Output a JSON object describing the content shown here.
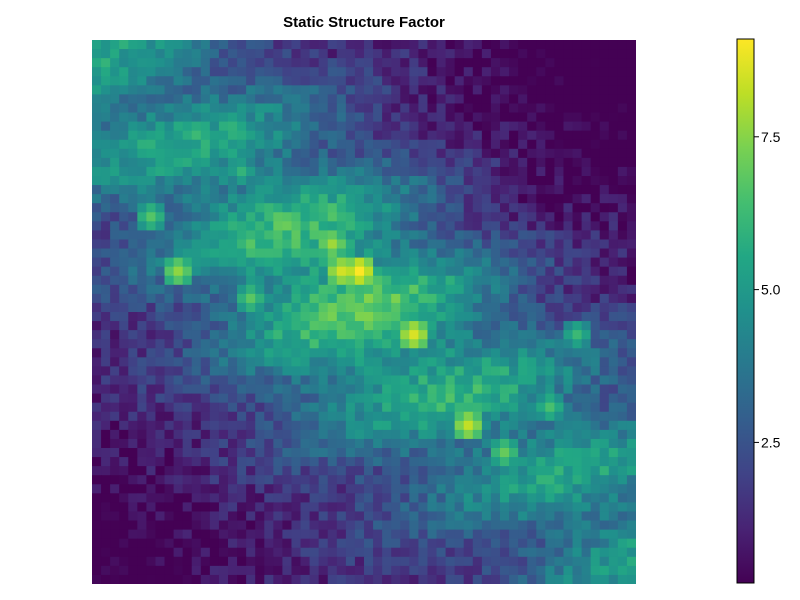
{
  "chart_data": {
    "type": "heatmap",
    "title": "Static Structure Factor",
    "xlabel": "",
    "ylabel": "",
    "grid": false,
    "colormap": "viridis",
    "clim": [
      0.2,
      9.1
    ],
    "nx": 60,
    "ny": 60,
    "values_description": "S(q) intensity on a 60x60 grid; bright diagonal ridge from upper-left toward lower-right with peaks ~9.1 near grid (28,25), ~8.6 at (36,33), ~8.3 at (41,41)",
    "peaks": [
      {
        "col": 29,
        "row": 25,
        "value": 9.1
      },
      {
        "col": 27,
        "row": 25,
        "value": 8.5
      },
      {
        "col": 35,
        "row": 32,
        "value": 8.6
      },
      {
        "col": 41,
        "row": 42,
        "value": 8.3
      },
      {
        "col": 26,
        "row": 22,
        "value": 7.8
      },
      {
        "col": 9,
        "row": 25,
        "value": 7.6
      },
      {
        "col": 45,
        "row": 45,
        "value": 7.0
      },
      {
        "col": 6,
        "row": 19,
        "value": 6.7
      },
      {
        "col": 50,
        "row": 40,
        "value": 6.5
      },
      {
        "col": 17,
        "row": 28,
        "value": 6.8
      },
      {
        "col": 16,
        "row": 14,
        "value": 6.0
      },
      {
        "col": 53,
        "row": 32,
        "value": 6.2
      }
    ],
    "colorbar": {
      "ticks": [
        2.5,
        5.0,
        7.5
      ],
      "tick_labels": [
        "2.5",
        "5.0",
        "7.5"
      ]
    }
  }
}
